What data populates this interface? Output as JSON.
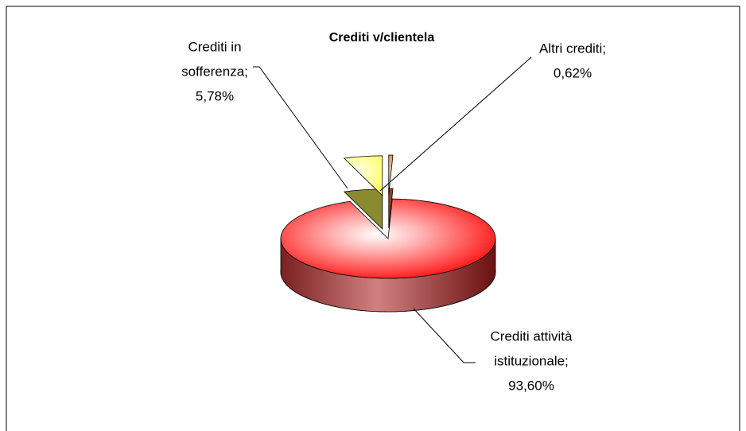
{
  "chart_data": {
    "type": "pie3d",
    "title": "Crediti v/clientela",
    "values": [
      0.62,
      93.6,
      5.78
    ],
    "value_labels": [
      [
        "Altri crediti;",
        "0,62%"
      ],
      [
        "Crediti attività",
        "istituzionale;",
        "93,60%"
      ],
      [
        "Crediti in",
        "sofferenza;",
        "5,78%"
      ]
    ],
    "colors": [
      "#ff6a1a",
      "#ff1010",
      "#ffff80"
    ],
    "explode": [
      true,
      false,
      true
    ]
  }
}
